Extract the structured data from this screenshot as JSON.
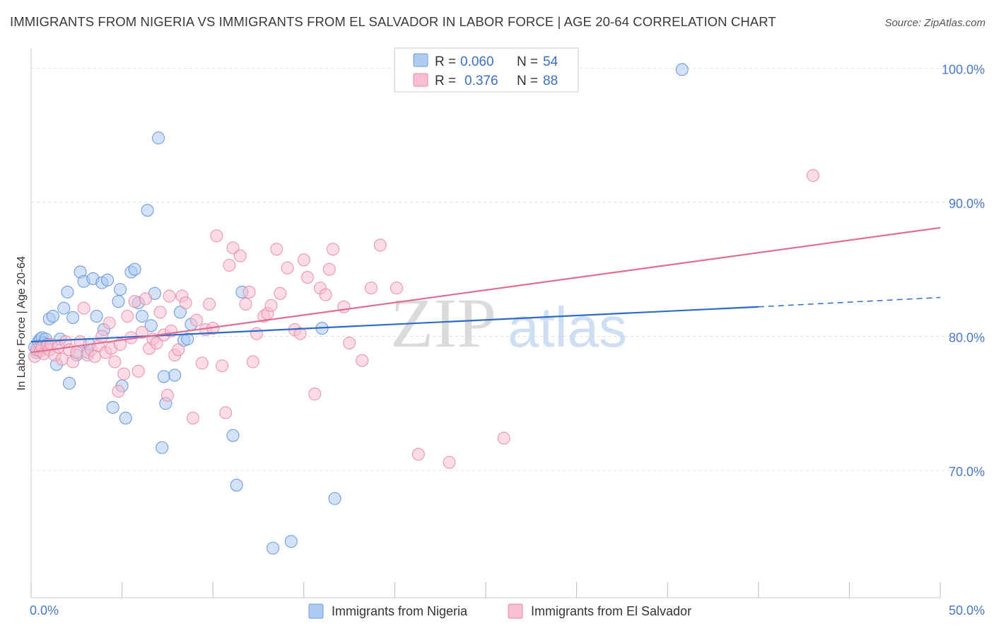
{
  "header": {
    "title": "IMMIGRANTS FROM NIGERIA VS IMMIGRANTS FROM EL SALVADOR IN LABOR FORCE | AGE 20-64 CORRELATION CHART",
    "source": "Source: ZipAtlas.com"
  },
  "watermark": {
    "zip": "ZIP",
    "atlas": "atlas"
  },
  "legend": {
    "r_label": "R =",
    "n_label": "N =",
    "rows": [
      {
        "r": "0.060",
        "n": "54",
        "color": "#aecbf0",
        "stroke": "#6d9be0"
      },
      {
        "r": "0.376",
        "n": "88",
        "color": "#f7bfd1",
        "stroke": "#e88aaa"
      }
    ]
  },
  "chart_data": {
    "type": "scatter",
    "title": "IMMIGRANTS FROM NIGERIA VS IMMIGRANTS FROM EL SALVADOR IN LABOR FORCE | AGE 20-64 CORRELATION CHART",
    "xlabel": "",
    "ylabel": "In Labor Force | Age 20-64",
    "xlim": [
      0,
      50
    ],
    "ylim": [
      60.5,
      101.5
    ],
    "x_tick_labels": [
      "0.0%",
      "50.0%"
    ],
    "y_ticks": [
      {
        "value": 70,
        "label": "70.0%"
      },
      {
        "value": 80,
        "label": "80.0%"
      },
      {
        "value": 90,
        "label": "90.0%"
      },
      {
        "value": 100,
        "label": "100.0%"
      }
    ],
    "grid": true,
    "series": [
      {
        "name": "Immigrants from Nigeria",
        "color": "#aecbf0",
        "stroke": "#5b8fdb",
        "line_color": "#2f6cc9",
        "trend": {
          "x0": 0,
          "y0": 79.6,
          "x1": 40,
          "y1": 82.2,
          "dash_to_x": 50,
          "dash_to_y": 82.9
        },
        "points": [
          [
            0.2,
            79.2
          ],
          [
            0.3,
            78.8
          ],
          [
            0.4,
            79.6
          ],
          [
            0.5,
            79.8
          ],
          [
            0.6,
            79.9
          ],
          [
            0.7,
            79.5
          ],
          [
            0.8,
            79.8
          ],
          [
            0.9,
            79.4
          ],
          [
            1.0,
            81.3
          ],
          [
            1.2,
            81.5
          ],
          [
            1.4,
            77.9
          ],
          [
            1.6,
            79.8
          ],
          [
            1.8,
            82.1
          ],
          [
            2.0,
            83.3
          ],
          [
            2.1,
            76.5
          ],
          [
            2.3,
            81.4
          ],
          [
            2.5,
            78.6
          ],
          [
            2.7,
            84.8
          ],
          [
            2.9,
            84.1
          ],
          [
            3.1,
            78.8
          ],
          [
            3.2,
            79.4
          ],
          [
            3.4,
            84.3
          ],
          [
            3.6,
            81.5
          ],
          [
            3.9,
            84.0
          ],
          [
            4.0,
            80.5
          ],
          [
            4.2,
            84.2
          ],
          [
            4.5,
            74.7
          ],
          [
            4.8,
            82.6
          ],
          [
            4.9,
            83.5
          ],
          [
            5.0,
            76.3
          ],
          [
            5.2,
            73.9
          ],
          [
            5.5,
            84.8
          ],
          [
            5.7,
            85.0
          ],
          [
            5.9,
            82.5
          ],
          [
            6.1,
            81.5
          ],
          [
            6.4,
            89.4
          ],
          [
            6.6,
            80.8
          ],
          [
            6.8,
            83.2
          ],
          [
            7.0,
            94.8
          ],
          [
            7.2,
            71.7
          ],
          [
            7.3,
            77.0
          ],
          [
            7.4,
            75.0
          ],
          [
            7.9,
            77.1
          ],
          [
            8.2,
            81.8
          ],
          [
            8.4,
            79.7
          ],
          [
            8.6,
            79.8
          ],
          [
            8.8,
            80.9
          ],
          [
            11.1,
            72.6
          ],
          [
            11.3,
            68.9
          ],
          [
            11.6,
            83.3
          ],
          [
            13.3,
            64.2
          ],
          [
            14.3,
            64.7
          ],
          [
            16.0,
            80.6
          ],
          [
            16.7,
            67.9
          ],
          [
            35.8,
            99.9
          ]
        ]
      },
      {
        "name": "Immigrants from El Salvador",
        "color": "#f7bfd1",
        "stroke": "#e6889f",
        "line_color": "#e06d98",
        "trend": {
          "x0": 0,
          "y0": 78.8,
          "x1": 50,
          "y1": 88.1
        },
        "points": [
          [
            0.2,
            78.5
          ],
          [
            0.3,
            79.0
          ],
          [
            0.5,
            78.9
          ],
          [
            0.6,
            79.2
          ],
          [
            0.7,
            78.7
          ],
          [
            0.9,
            79.3
          ],
          [
            1.0,
            79.0
          ],
          [
            1.1,
            79.4
          ],
          [
            1.3,
            78.6
          ],
          [
            1.5,
            79.2
          ],
          [
            1.7,
            78.3
          ],
          [
            1.9,
            79.6
          ],
          [
            2.1,
            79.0
          ],
          [
            2.3,
            78.1
          ],
          [
            2.5,
            78.8
          ],
          [
            2.7,
            79.6
          ],
          [
            2.9,
            82.1
          ],
          [
            3.1,
            78.6
          ],
          [
            3.3,
            79.0
          ],
          [
            3.5,
            78.5
          ],
          [
            3.7,
            79.3
          ],
          [
            3.9,
            80.0
          ],
          [
            4.1,
            78.8
          ],
          [
            4.3,
            81.0
          ],
          [
            4.4,
            79.1
          ],
          [
            4.6,
            78.1
          ],
          [
            4.8,
            75.9
          ],
          [
            4.9,
            79.4
          ],
          [
            5.1,
            77.2
          ],
          [
            5.3,
            81.5
          ],
          [
            5.5,
            79.9
          ],
          [
            5.7,
            82.6
          ],
          [
            5.9,
            77.4
          ],
          [
            6.1,
            80.3
          ],
          [
            6.3,
            82.8
          ],
          [
            6.5,
            79.1
          ],
          [
            6.7,
            79.8
          ],
          [
            6.9,
            79.5
          ],
          [
            7.1,
            81.8
          ],
          [
            7.3,
            80.1
          ],
          [
            7.5,
            75.6
          ],
          [
            7.6,
            83.0
          ],
          [
            7.7,
            80.4
          ],
          [
            7.9,
            78.6
          ],
          [
            8.1,
            79.0
          ],
          [
            8.3,
            83.0
          ],
          [
            8.5,
            82.5
          ],
          [
            8.9,
            73.9
          ],
          [
            9.1,
            81.2
          ],
          [
            9.4,
            78.0
          ],
          [
            9.6,
            80.5
          ],
          [
            9.8,
            82.4
          ],
          [
            10.0,
            80.6
          ],
          [
            10.2,
            87.5
          ],
          [
            10.5,
            77.8
          ],
          [
            10.7,
            74.3
          ],
          [
            10.9,
            85.3
          ],
          [
            11.1,
            86.6
          ],
          [
            11.5,
            86.0
          ],
          [
            11.8,
            82.4
          ],
          [
            12.0,
            83.3
          ],
          [
            12.2,
            78.1
          ],
          [
            12.4,
            80.2
          ],
          [
            12.8,
            81.5
          ],
          [
            13.0,
            81.7
          ],
          [
            13.2,
            82.3
          ],
          [
            13.5,
            86.5
          ],
          [
            13.7,
            83.2
          ],
          [
            14.1,
            85.1
          ],
          [
            14.5,
            80.5
          ],
          [
            14.8,
            80.2
          ],
          [
            15.0,
            85.7
          ],
          [
            15.2,
            84.4
          ],
          [
            15.6,
            75.7
          ],
          [
            15.9,
            83.6
          ],
          [
            16.2,
            83.1
          ],
          [
            16.4,
            85.0
          ],
          [
            16.6,
            86.5
          ],
          [
            17.2,
            82.2
          ],
          [
            17.5,
            79.5
          ],
          [
            18.2,
            78.2
          ],
          [
            18.7,
            83.6
          ],
          [
            19.2,
            86.8
          ],
          [
            20.1,
            83.6
          ],
          [
            21.3,
            71.2
          ],
          [
            23.0,
            70.6
          ],
          [
            26.0,
            72.4
          ],
          [
            43.0,
            92.0
          ]
        ]
      }
    ]
  },
  "bottom_legend": {
    "items": [
      {
        "label": "Immigrants from Nigeria",
        "color": "#aecbf0",
        "stroke": "#6d9be0"
      },
      {
        "label": "Immigrants from El Salvador",
        "color": "#f7bfd1",
        "stroke": "#e88aaa"
      }
    ]
  }
}
